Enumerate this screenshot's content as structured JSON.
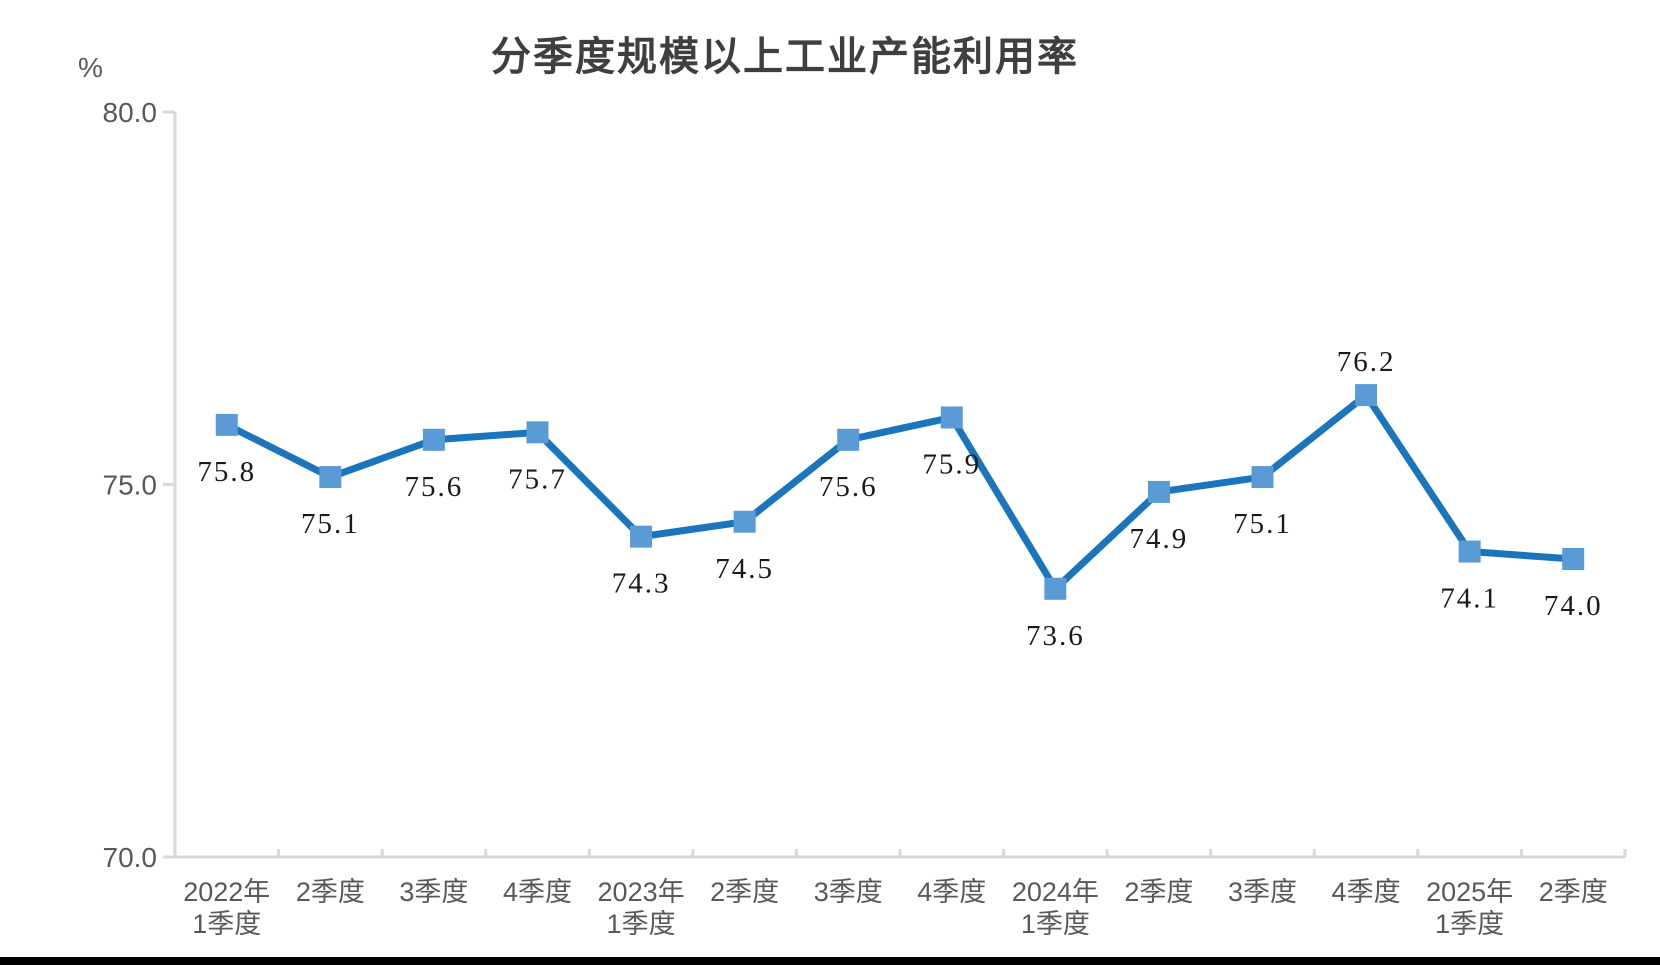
{
  "page": {
    "background": "#ffffff"
  },
  "chart_data": {
    "type": "line",
    "title": "分季度规模以上工业产能利用率",
    "unit_label": "%",
    "categories": [
      [
        "2022年",
        "1季度"
      ],
      [
        "2季度"
      ],
      [
        "3季度"
      ],
      [
        "4季度"
      ],
      [
        "2023年",
        "1季度"
      ],
      [
        "2季度"
      ],
      [
        "3季度"
      ],
      [
        "4季度"
      ],
      [
        "2024年",
        "1季度"
      ],
      [
        "2季度"
      ],
      [
        "3季度"
      ],
      [
        "4季度"
      ],
      [
        "2025年",
        "1季度"
      ],
      [
        "2季度"
      ]
    ],
    "values": [
      75.8,
      75.1,
      75.6,
      75.7,
      74.3,
      74.5,
      75.6,
      75.9,
      73.6,
      74.9,
      75.1,
      76.2,
      74.1,
      74.0
    ],
    "data_labels": [
      "75.8",
      "75.1",
      "75.6",
      "75.7",
      "74.3",
      "74.5",
      "75.6",
      "75.9",
      "73.6",
      "74.9",
      "75.1",
      "76.2",
      "74.1",
      "74.0"
    ],
    "label_positions": [
      "below",
      "below",
      "below",
      "below",
      "below",
      "below",
      "below",
      "below",
      "below",
      "below",
      "below",
      "above",
      "below",
      "below"
    ],
    "ylim": [
      70,
      80
    ],
    "y_ticks": [
      {
        "value": 80,
        "label": "80.0"
      },
      {
        "value": 75,
        "label": "75.0"
      },
      {
        "value": 70,
        "label": "70.0"
      }
    ],
    "grid": "off",
    "legend": "none",
    "marker_shape": "square",
    "colors": {
      "line": "#1b75bc",
      "marker": "#5b9bd5",
      "axis": "#d9d9d9",
      "axis_label": "#595959",
      "data_label": "#1a1a1a",
      "title": "#3f3f3f",
      "footer_bar": "#000000"
    }
  }
}
